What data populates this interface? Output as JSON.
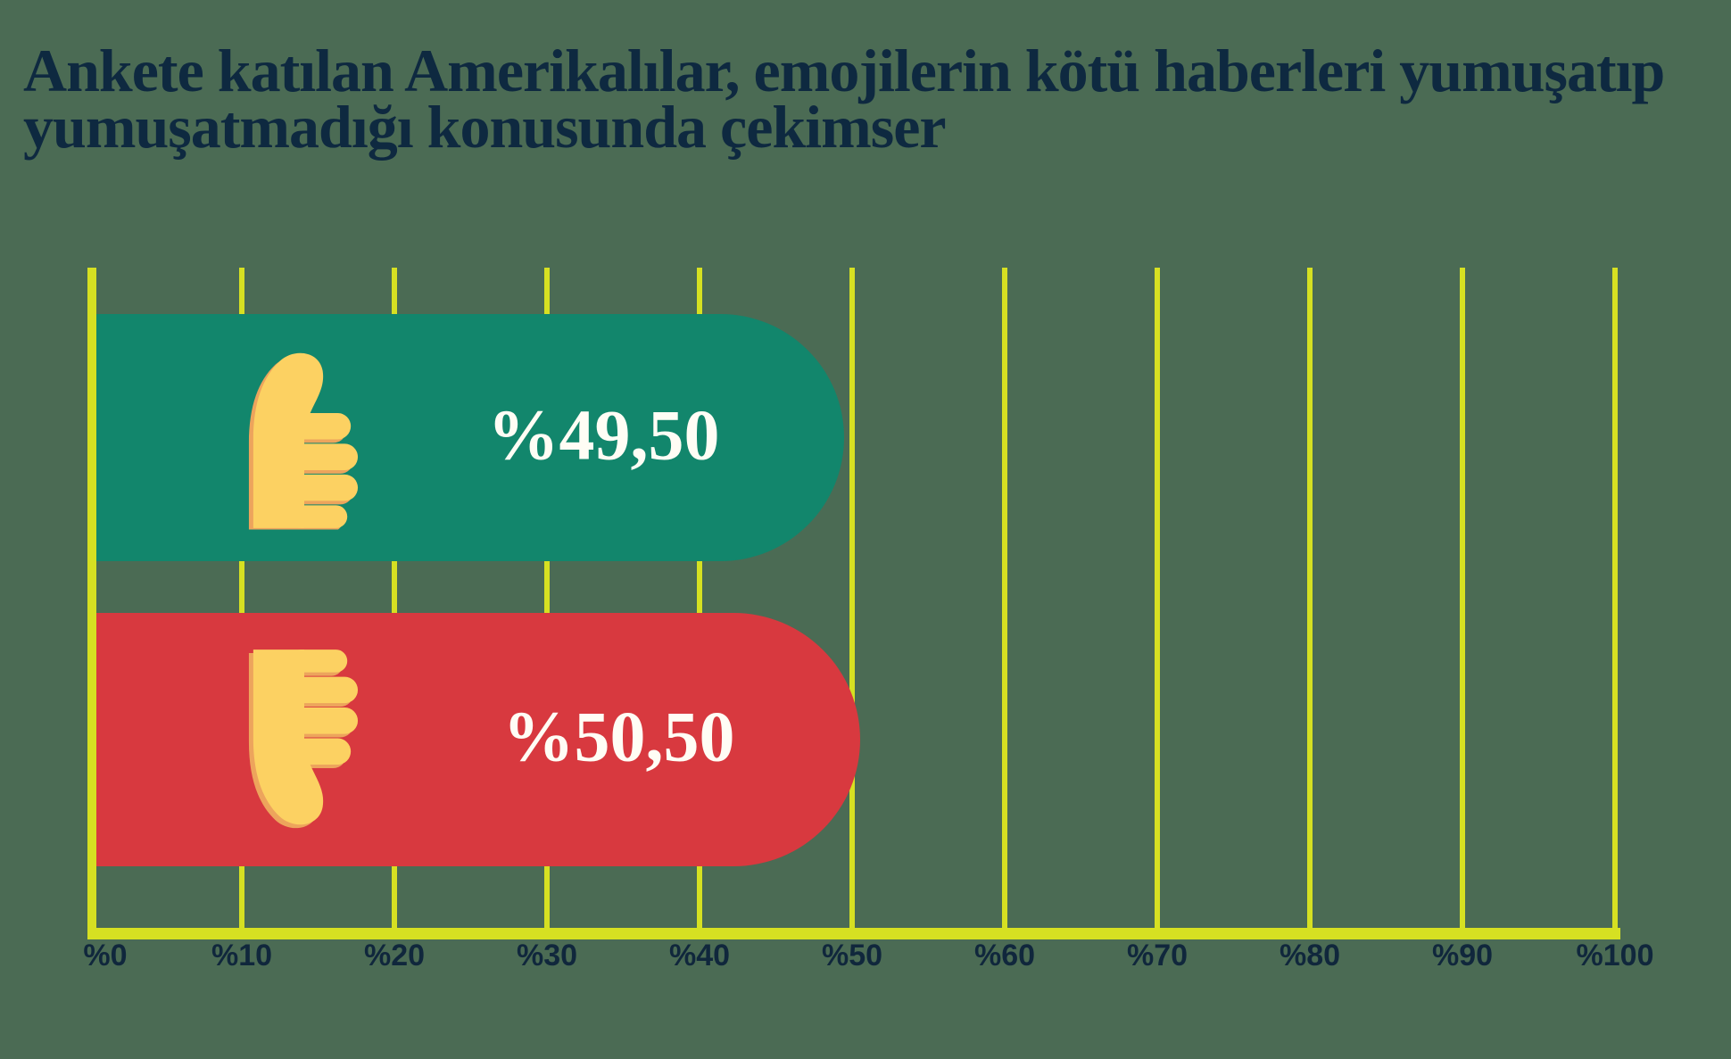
{
  "title": "Ankete katılan Amerikalılar, emojilerin kötü haberleri yumuşatıp yumuşatmadığı konusunda çekimser",
  "colors": {
    "background": "#4b6b54",
    "grid_yellow": "#d6e022",
    "title_navy": "#0e2940",
    "tick_navy": "#10273c",
    "value_text": "#fffdf5",
    "bar_positive": "#12866c",
    "bar_negative": "#d8393f",
    "emoji_fill": "#fcd162",
    "emoji_shadow": "#eda45c"
  },
  "chart_data": {
    "type": "bar",
    "orientation": "horizontal",
    "xlim": [
      0,
      100
    ],
    "grid": true,
    "x_ticks": [
      "%0",
      "%10",
      "%20",
      "%30",
      "%40",
      "%50",
      "%60",
      "%70",
      "%80",
      "%90",
      "%100"
    ],
    "bars": [
      {
        "icon": "thumbs-up-emoji",
        "value": 49.5,
        "label": "%49,50",
        "color": "#12866c"
      },
      {
        "icon": "thumbs-down-emoji",
        "value": 50.5,
        "label": "%50,50",
        "color": "#d8393f"
      }
    ]
  }
}
